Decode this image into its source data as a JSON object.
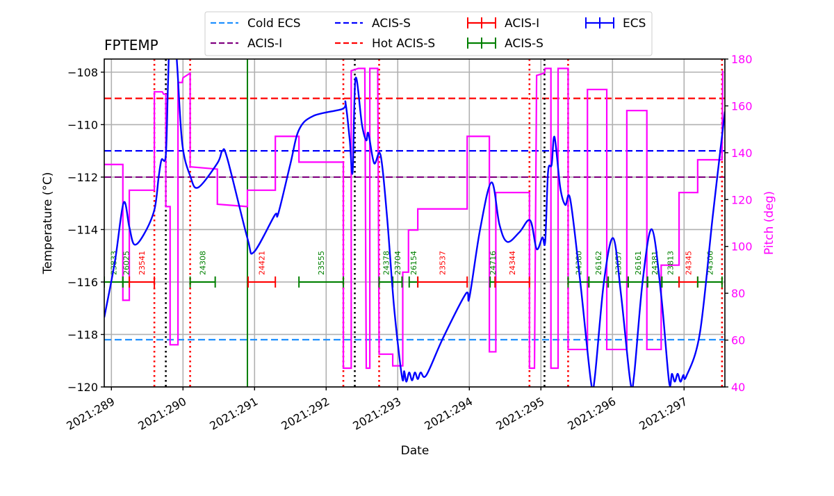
{
  "chart_data": {
    "type": "line",
    "title": "FPTEMP",
    "xlabel": "Date",
    "ylabel": "Temperature ($^\\circ$C)",
    "ylabel_display": "Temperature (°C)",
    "y2label": "Pitch (deg)",
    "xlim": [
      288.9,
      297.57
    ],
    "ylim": [
      -120,
      -107.5
    ],
    "y2lim": [
      40,
      180
    ],
    "grid": true,
    "legend_placement": "top-center, outside",
    "x_ticks": [
      289,
      290,
      291,
      292,
      293,
      294,
      295,
      296,
      297
    ],
    "x_tick_labels": [
      "2021:289",
      "2021:290",
      "2021:291",
      "2021:292",
      "2021:293",
      "2021:294",
      "2021:295",
      "2021:296",
      "2021:297"
    ],
    "y_ticks": [
      -108,
      -110,
      -112,
      -114,
      -116,
      -118,
      -120
    ],
    "y_tick_labels": [
      "−108",
      "−110",
      "−112",
      "−114",
      "−116",
      "−118",
      "−120"
    ],
    "y2_ticks": [
      40,
      60,
      80,
      100,
      120,
      140,
      160,
      180
    ],
    "y2_tick_labels": [
      "40",
      "60",
      "80",
      "100",
      "120",
      "140",
      "160",
      "180"
    ],
    "limits": [
      {
        "name": "Cold ECS",
        "value": -118.2,
        "color": "#1e90ff"
      },
      {
        "name": "ACIS-I",
        "value": -112.0,
        "color": "#800080"
      },
      {
        "name": "ACIS-S",
        "value": -111.0,
        "color": "#0000ff"
      },
      {
        "name": "Hot ACIS-S",
        "value": -109.0,
        "color": "#ff0000"
      }
    ],
    "legend": [
      {
        "label": "Cold ECS",
        "style": "dashed",
        "color": "#1e90ff"
      },
      {
        "label": "ACIS-I",
        "style": "dashed",
        "color": "#800080"
      },
      {
        "label": "ACIS-S",
        "style": "dashed",
        "color": "#0000ff"
      },
      {
        "label": "Hot ACIS-S",
        "style": "dashed",
        "color": "#ff0000"
      },
      {
        "label": "ACIS-I",
        "style": "errorbar",
        "color": "#ff0000"
      },
      {
        "label": "ACIS-S",
        "style": "errorbar",
        "color": "#008000"
      },
      {
        "label": "ECS",
        "style": "errorbar",
        "color": "#0000ff"
      }
    ],
    "temperature": {
      "color": "#0000ff",
      "points": [
        [
          288.9,
          -117.35
        ],
        [
          289.05,
          -115.2
        ],
        [
          289.17,
          -112.98
        ],
        [
          289.25,
          -113.9
        ],
        [
          289.32,
          -114.57
        ],
        [
          289.45,
          -114.2
        ],
        [
          289.6,
          -113.25
        ],
        [
          289.66,
          -112.0
        ],
        [
          289.7,
          -111.34
        ],
        [
          289.76,
          -111.16
        ],
        [
          289.79,
          -108.5
        ],
        [
          289.82,
          -106.3
        ],
        [
          289.88,
          -106.3
        ],
        [
          289.92,
          -107.8
        ],
        [
          289.99,
          -110.73
        ],
        [
          290.1,
          -111.95
        ],
        [
          290.21,
          -112.4
        ],
        [
          290.48,
          -111.47
        ],
        [
          290.55,
          -111.0
        ],
        [
          290.62,
          -111.3
        ],
        [
          290.9,
          -114.33
        ],
        [
          290.99,
          -114.86
        ],
        [
          291.28,
          -113.46
        ],
        [
          291.33,
          -113.4
        ],
        [
          291.5,
          -111.5
        ],
        [
          291.62,
          -110.2
        ],
        [
          291.82,
          -109.67
        ],
        [
          292.23,
          -109.4
        ],
        [
          292.27,
          -109.17
        ],
        [
          292.33,
          -110.6
        ],
        [
          292.37,
          -111.8
        ],
        [
          292.41,
          -108.24
        ],
        [
          292.5,
          -110.0
        ],
        [
          292.56,
          -110.6
        ],
        [
          292.59,
          -110.33
        ],
        [
          292.67,
          -111.47
        ],
        [
          292.76,
          -111.16
        ],
        [
          292.85,
          -113.5
        ],
        [
          292.95,
          -117.0
        ],
        [
          293.06,
          -119.63
        ],
        [
          293.09,
          -119.4
        ],
        [
          293.12,
          -119.8
        ],
        [
          293.16,
          -119.45
        ],
        [
          293.2,
          -119.75
        ],
        [
          293.24,
          -119.45
        ],
        [
          293.28,
          -119.7
        ],
        [
          293.32,
          -119.45
        ],
        [
          293.4,
          -119.55
        ],
        [
          293.63,
          -118.15
        ],
        [
          293.95,
          -116.45
        ],
        [
          294.0,
          -116.6
        ],
        [
          294.15,
          -114.0
        ],
        [
          294.31,
          -112.2
        ],
        [
          294.42,
          -113.8
        ],
        [
          294.53,
          -114.47
        ],
        [
          294.7,
          -114.1
        ],
        [
          294.85,
          -113.65
        ],
        [
          294.94,
          -114.74
        ],
        [
          295.02,
          -114.3
        ],
        [
          295.06,
          -114.45
        ],
        [
          295.1,
          -111.8
        ],
        [
          295.15,
          -111.53
        ],
        [
          295.19,
          -110.47
        ],
        [
          295.27,
          -112.4
        ],
        [
          295.34,
          -113.06
        ],
        [
          295.41,
          -112.85
        ],
        [
          295.55,
          -116.0
        ],
        [
          295.7,
          -119.82
        ],
        [
          295.75,
          -119.7
        ],
        [
          295.88,
          -116.0
        ],
        [
          296.01,
          -114.33
        ],
        [
          296.12,
          -116.5
        ],
        [
          296.25,
          -119.82
        ],
        [
          296.3,
          -119.6
        ],
        [
          296.42,
          -116.0
        ],
        [
          296.55,
          -113.99
        ],
        [
          296.68,
          -116.5
        ],
        [
          296.79,
          -119.8
        ],
        [
          296.83,
          -119.5
        ],
        [
          296.87,
          -119.8
        ],
        [
          296.91,
          -119.5
        ],
        [
          296.95,
          -119.8
        ],
        [
          296.99,
          -119.55
        ],
        [
          297.03,
          -119.6
        ],
        [
          297.22,
          -117.96
        ],
        [
          297.4,
          -113.5
        ],
        [
          297.57,
          -109.5
        ]
      ]
    },
    "pitch": {
      "color": "#ff00ff",
      "points": [
        [
          288.9,
          135
        ],
        [
          289.16,
          135
        ],
        [
          289.16,
          77
        ],
        [
          289.25,
          77
        ],
        [
          289.25,
          124
        ],
        [
          289.6,
          124
        ],
        [
          289.6,
          166
        ],
        [
          289.71,
          166
        ],
        [
          289.73,
          165
        ],
        [
          289.76,
          165
        ],
        [
          289.76,
          117
        ],
        [
          289.82,
          117
        ],
        [
          289.82,
          58
        ],
        [
          289.93,
          58
        ],
        [
          289.93,
          170
        ],
        [
          289.99,
          170
        ],
        [
          290.0,
          172
        ],
        [
          290.1,
          174
        ],
        [
          290.1,
          134
        ],
        [
          290.48,
          133
        ],
        [
          290.48,
          118
        ],
        [
          290.9,
          117
        ],
        [
          290.9,
          124
        ],
        [
          291.29,
          124
        ],
        [
          291.29,
          147
        ],
        [
          291.62,
          147
        ],
        [
          291.62,
          136
        ],
        [
          292.24,
          136
        ],
        [
          292.24,
          48
        ],
        [
          292.35,
          48
        ],
        [
          292.35,
          175
        ],
        [
          292.45,
          176
        ],
        [
          292.54,
          176
        ],
        [
          292.56,
          48
        ],
        [
          292.61,
          48
        ],
        [
          292.61,
          176
        ],
        [
          292.72,
          176
        ],
        [
          292.74,
          54
        ],
        [
          292.93,
          54
        ],
        [
          292.93,
          49
        ],
        [
          293.07,
          49
        ],
        [
          293.07,
          89
        ],
        [
          293.15,
          89
        ],
        [
          293.15,
          107
        ],
        [
          293.28,
          107
        ],
        [
          293.28,
          116
        ],
        [
          293.97,
          116
        ],
        [
          293.97,
          147
        ],
        [
          294.28,
          147
        ],
        [
          294.28,
          55
        ],
        [
          294.37,
          55
        ],
        [
          294.37,
          123
        ],
        [
          294.84,
          123
        ],
        [
          294.84,
          48
        ],
        [
          294.91,
          48
        ],
        [
          294.94,
          173
        ],
        [
          295.05,
          174
        ],
        [
          295.06,
          176
        ],
        [
          295.14,
          176
        ],
        [
          295.14,
          48
        ],
        [
          295.24,
          48
        ],
        [
          295.24,
          176
        ],
        [
          295.38,
          176
        ],
        [
          295.38,
          56
        ],
        [
          295.65,
          56
        ],
        [
          295.65,
          167
        ],
        [
          295.92,
          167
        ],
        [
          295.92,
          56
        ],
        [
          296.2,
          56
        ],
        [
          296.2,
          158
        ],
        [
          296.48,
          158
        ],
        [
          296.48,
          56
        ],
        [
          296.68,
          56
        ],
        [
          296.68,
          92
        ],
        [
          296.93,
          92
        ],
        [
          296.93,
          123
        ],
        [
          297.19,
          123
        ],
        [
          297.19,
          137
        ],
        [
          297.53,
          137
        ],
        [
          297.54,
          175
        ]
      ]
    },
    "vlines": [
      {
        "x": 289.6,
        "color": "#ff0000",
        "style": "dotted"
      },
      {
        "x": 290.1,
        "color": "#ff0000",
        "style": "dotted"
      },
      {
        "x": 292.24,
        "color": "#ff0000",
        "style": "dotted"
      },
      {
        "x": 292.74,
        "color": "#ff0000",
        "style": "dotted"
      },
      {
        "x": 294.84,
        "color": "#ff0000",
        "style": "dotted"
      },
      {
        "x": 295.38,
        "color": "#ff0000",
        "style": "dotted"
      },
      {
        "x": 297.53,
        "color": "#ff0000",
        "style": "dotted"
      },
      {
        "x": 289.76,
        "color": "#000000",
        "style": "dotted"
      },
      {
        "x": 292.4,
        "color": "#000000",
        "style": "dotted"
      },
      {
        "x": 295.05,
        "color": "#000000",
        "style": "dotted"
      },
      {
        "x": 290.9,
        "color": "#008000",
        "style": "solid"
      }
    ],
    "obsids_level": -116,
    "obsids": [
      {
        "id": "23833",
        "instrument": "ACIS-S",
        "start": 288.9,
        "stop": 289.16
      },
      {
        "id": "26025",
        "instrument": "ACIS-S",
        "start": 289.16,
        "stop": 289.25
      },
      {
        "id": "23541",
        "instrument": "ACIS-I",
        "start": 289.25,
        "stop": 289.6
      },
      {
        "id": "24308",
        "instrument": "ACIS-S",
        "start": 290.1,
        "stop": 290.45
      },
      {
        "id": "24421",
        "instrument": "ACIS-I",
        "start": 290.91,
        "stop": 291.29
      },
      {
        "id": "23555",
        "instrument": "ACIS-S",
        "start": 291.62,
        "stop": 292.24
      },
      {
        "id": "24378",
        "instrument": "ACIS-S",
        "start": 292.74,
        "stop": 292.93
      },
      {
        "id": "23704",
        "instrument": "ACIS-S",
        "start": 292.93,
        "stop": 293.06
      },
      {
        "id": "26154",
        "instrument": "ACIS-S",
        "start": 293.16,
        "stop": 293.28
      },
      {
        "id": "23537",
        "instrument": "ACIS-I",
        "start": 293.28,
        "stop": 293.97
      },
      {
        "id": "24716",
        "instrument": "ACIS-S",
        "start": 294.29,
        "stop": 294.36
      },
      {
        "id": "24344",
        "instrument": "ACIS-I",
        "start": 294.36,
        "stop": 294.84
      },
      {
        "id": "24380",
        "instrument": "ACIS-S",
        "start": 295.38,
        "stop": 295.67
      },
      {
        "id": "26162",
        "instrument": "ACIS-S",
        "start": 295.67,
        "stop": 295.94
      },
      {
        "id": "23657",
        "instrument": "ACIS-S",
        "start": 295.94,
        "stop": 296.22
      },
      {
        "id": "26161",
        "instrument": "ACIS-S",
        "start": 296.22,
        "stop": 296.49
      },
      {
        "id": "24381",
        "instrument": "ACIS-S",
        "start": 296.49,
        "stop": 296.69
      },
      {
        "id": "23813",
        "instrument": "ACIS-S",
        "start": 296.69,
        "stop": 296.93
      },
      {
        "id": "24345",
        "instrument": "ACIS-I",
        "start": 296.93,
        "stop": 297.19
      },
      {
        "id": "24306",
        "instrument": "ACIS-S",
        "start": 297.19,
        "stop": 297.53
      }
    ]
  }
}
